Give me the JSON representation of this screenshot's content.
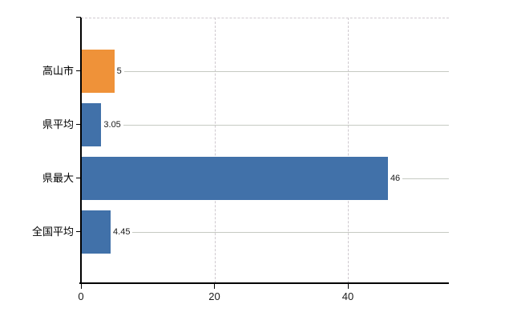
{
  "chart": {
    "background_color": "#ffffff",
    "axis_color": "#000000",
    "dashed_grid_color": "#cfc9cf",
    "row_line_color": "#c6cac2",
    "text_color": "#1a1a1a",
    "blue": "#4171a9",
    "orange": "#ef9239"
  },
  "chart_data": {
    "type": "bar",
    "orientation": "horizontal",
    "title": "",
    "xlabel": "",
    "ylabel": "",
    "categories": [
      "高山市",
      "県平均",
      "県最大",
      "全国平均"
    ],
    "values": [
      5,
      3.05,
      46,
      4.45
    ],
    "value_labels": [
      "5",
      "3.05",
      "46",
      "4.45"
    ],
    "bar_colors": [
      "#ef9239",
      "#4171a9",
      "#4171a9",
      "#4171a9"
    ],
    "xlim": [
      0,
      55.1
    ],
    "x_ticks": [
      0,
      20,
      40
    ],
    "x_tick_labels": [
      "0",
      "20",
      "40"
    ],
    "grid": {
      "vertical_gridlines": "dashed at each x tick",
      "top_border": "dashed",
      "row_leader_lines": true
    },
    "legend": {
      "visible": false
    }
  }
}
